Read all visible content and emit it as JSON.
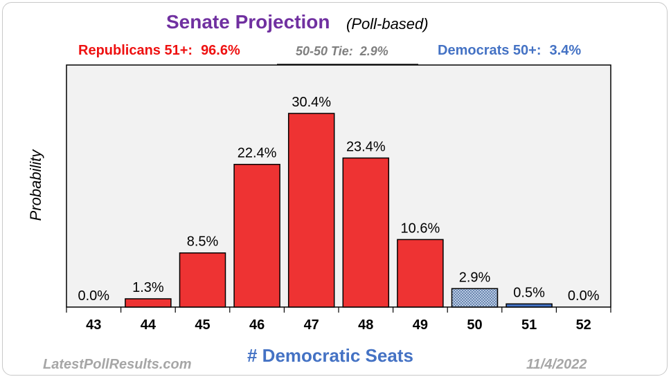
{
  "header": {
    "title": "Senate Projection",
    "subtitle": "(Poll-based)"
  },
  "summary": {
    "republicans_label": "Republicans 51+:",
    "republicans_value": "96.6%",
    "tie_label": "50-50 Tie:",
    "tie_value": "2.9%",
    "democrats_label": "Democrats 50+:",
    "democrats_value": "3.4%"
  },
  "footer": {
    "source": "LatestPollResults.com",
    "date": "11/4/2022"
  },
  "colors": {
    "republican": "#ee3333",
    "democrat": "#4472c4",
    "tie_fill": "#c9d9ee",
    "plot_bg": "#f2f2f2",
    "title": "#7030a0"
  },
  "chart_data": {
    "type": "bar",
    "categories": [
      "43",
      "44",
      "45",
      "46",
      "47",
      "48",
      "49",
      "50",
      "51",
      "52"
    ],
    "values": [
      0.0,
      1.3,
      8.5,
      22.4,
      30.4,
      23.4,
      10.6,
      2.9,
      0.5,
      0.0
    ],
    "data_labels": [
      "0.0%",
      "1.3%",
      "8.5%",
      "22.4%",
      "30.4%",
      "23.4%",
      "10.6%",
      "2.9%",
      "0.5%",
      "0.0%"
    ],
    "bar_kind": [
      "republican",
      "republican",
      "republican",
      "republican",
      "republican",
      "republican",
      "republican",
      "tie",
      "democrat",
      "democrat"
    ],
    "title": "Senate Projection",
    "xlabel": "# Democratic Seats",
    "ylabel": "Probability",
    "ylim": [
      0,
      38
    ],
    "grid": false,
    "legend": "none"
  }
}
